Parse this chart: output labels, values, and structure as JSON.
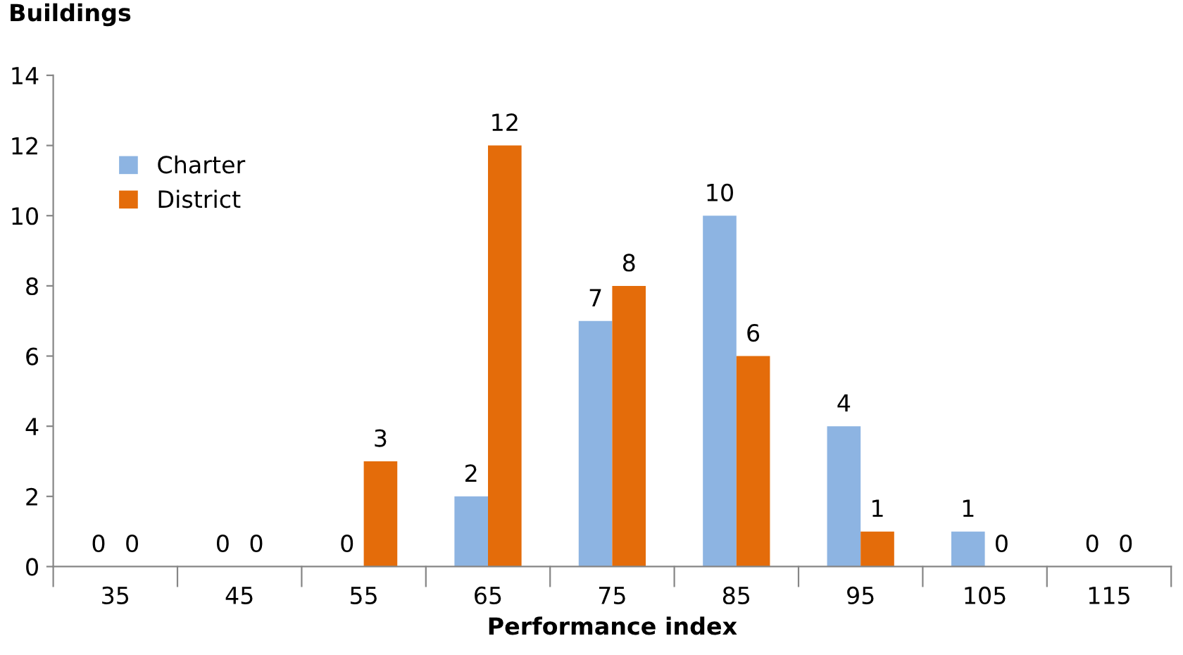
{
  "chart_data": {
    "type": "bar",
    "xlabel": "Performance index",
    "ylabel": "Buildings",
    "categories": [
      "35",
      "45",
      "55",
      "65",
      "75",
      "85",
      "95",
      "105",
      "115"
    ],
    "series": [
      {
        "name": "Charter",
        "color": "#8db4e2",
        "values": [
          0,
          0,
          0,
          2,
          7,
          10,
          4,
          1,
          0
        ]
      },
      {
        "name": "District",
        "color": "#e46c0a",
        "values": [
          0,
          0,
          3,
          12,
          8,
          6,
          1,
          0,
          0
        ]
      }
    ],
    "ylim": [
      0,
      14
    ],
    "yticks": [
      0,
      2,
      4,
      6,
      8,
      10,
      12,
      14
    ],
    "grid": false,
    "legend": "top left",
    "data_labels": true
  }
}
